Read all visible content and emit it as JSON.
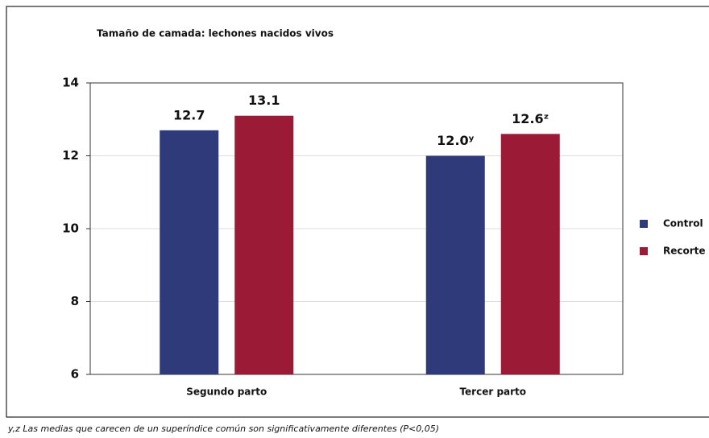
{
  "chart_data": {
    "type": "bar",
    "title": "Tamaño de camada: lechones nacidos vivos",
    "categories": [
      "Segundo parto",
      "Tercer parto"
    ],
    "series": [
      {
        "name": "Control",
        "color": "#2e3a7a",
        "values": [
          12.7,
          12.0
        ],
        "value_labels": [
          "12.7",
          "12.0ʸ"
        ]
      },
      {
        "name": "Recorte",
        "color": "#9b1a35",
        "values": [
          13.1,
          12.6
        ],
        "value_labels": [
          "13.1",
          "12.6ᶻ"
        ]
      }
    ],
    "ylim": [
      6,
      14
    ],
    "yticks": [
      6,
      8,
      10,
      12,
      14
    ],
    "grid": true,
    "legend": "right",
    "footnote": "y,z Las medias que carecen de un superíndice común son significativamente diferentes (P<0,05)"
  }
}
